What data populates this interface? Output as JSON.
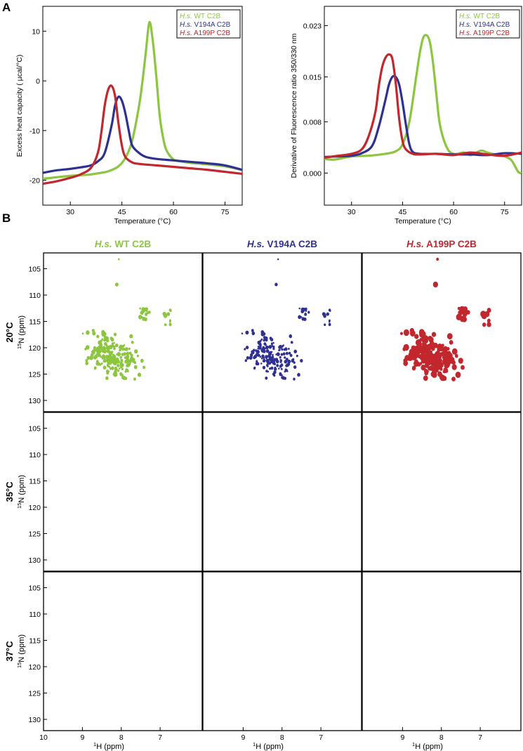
{
  "panel_labels": {
    "a": "A",
    "b": "B"
  },
  "colors": {
    "wt": "#8cc63f",
    "v194a": "#2e3192",
    "a199p": "#c1272d",
    "axis": "#000000"
  },
  "legend": [
    {
      "prefix": "H.s.",
      "rest": " WT C2B",
      "color": "#8cc63f"
    },
    {
      "prefix": "H.s.",
      "rest": " V194A C2B",
      "color": "#2e3192"
    },
    {
      "prefix": "H.s.",
      "rest": " A199P C2B",
      "color": "#c1272d"
    }
  ],
  "nmr": {
    "columns": [
      {
        "prefix": "H.s.",
        "rest": " WT C2B",
        "color": "#8cc63f"
      },
      {
        "prefix": "H.s.",
        "rest": " V194A C2B",
        "color": "#2e3192"
      },
      {
        "prefix": "H.s.",
        "rest": " A199P C2B",
        "color": "#c1272d"
      }
    ],
    "rows": [
      "20°C",
      "35°C",
      "37°C"
    ],
    "y_label": {
      "sup": "15",
      "main": "N  (ppm)"
    },
    "x_label": {
      "sup": "1",
      "main": "H  (ppm)"
    },
    "y_ticks": [
      "105",
      "110",
      "115",
      "120",
      "125",
      "130"
    ],
    "x_ticks_first": [
      "10",
      "9",
      "8",
      "7"
    ],
    "x_ticks_other": [
      "9",
      "8",
      "7"
    ]
  },
  "chart_data": [
    {
      "type": "line",
      "ylabel": "Excess heat capacity ( µcal/°C)",
      "xlabel": "Temperature (°C)",
      "xlim": [
        22,
        80
      ],
      "ylim": [
        -25,
        15
      ],
      "xticks": [
        30,
        45,
        60,
        75
      ],
      "yticks": [
        -20,
        -10,
        0,
        10
      ],
      "series": [
        {
          "name": "H.s. WT C2B",
          "x": [
            22,
            30,
            35,
            38,
            41,
            44,
            46,
            48,
            50,
            51,
            52,
            53,
            54,
            55,
            56,
            57,
            58,
            60,
            62,
            65,
            70,
            75,
            80
          ],
          "y": [
            -19.7,
            -19.1,
            -18.9,
            -18.6,
            -18.2,
            -17.2,
            -15.5,
            -12,
            -5,
            0,
            6,
            11.8,
            8,
            1,
            -7,
            -11.5,
            -14,
            -15.8,
            -16.2,
            -16.5,
            -16.8,
            -17.2,
            -17.9
          ]
        },
        {
          "name": "H.s. V194A C2B",
          "x": [
            22,
            26,
            30,
            33,
            36,
            38,
            40,
            42,
            43,
            44,
            45,
            46,
            47,
            48,
            50,
            52,
            55,
            60,
            65,
            70,
            75,
            80
          ],
          "y": [
            -18.5,
            -18,
            -17.7,
            -17.4,
            -17,
            -16.2,
            -14.5,
            -9,
            -5,
            -3.2,
            -4,
            -6.5,
            -10,
            -13,
            -14.5,
            -15.3,
            -15.7,
            -16,
            -16.3,
            -16.6,
            -17,
            -17.9
          ]
        },
        {
          "name": "H.s. A199P C2B",
          "x": [
            22,
            26,
            30,
            33,
            36,
            38,
            39,
            40,
            41,
            42,
            43,
            44,
            45,
            46,
            48,
            50,
            55,
            60,
            65,
            70,
            75,
            80
          ],
          "y": [
            -20.7,
            -20.2,
            -19.5,
            -18.8,
            -17.5,
            -14.5,
            -10.5,
            -5,
            -1.8,
            -1,
            -3,
            -8.5,
            -13,
            -15.3,
            -16.4,
            -16.7,
            -17,
            -17.3,
            -17.6,
            -17.9,
            -18.3,
            -18.7
          ]
        }
      ]
    },
    {
      "type": "line",
      "ylabel": "Derivative of Fluorescence ratio 350/330 nm",
      "xlabel": "Temperature (°C)",
      "xlim": [
        22,
        80
      ],
      "ylim": [
        -0.005,
        0.026
      ],
      "xticks": [
        30,
        45,
        60,
        75
      ],
      "yticks": [
        0.0,
        0.008,
        0.015,
        0.023
      ],
      "ytick_labels": [
        "0.000",
        "0.008",
        "0.015",
        "0.023"
      ],
      "series": [
        {
          "name": "H.s. WT C2B",
          "x": [
            22,
            25,
            30,
            35,
            40,
            43,
            45,
            47,
            49,
            50,
            51,
            52,
            53,
            54,
            55,
            56,
            58,
            60,
            63,
            65,
            68,
            70,
            73,
            75,
            77,
            79,
            80
          ],
          "y": [
            0.0022,
            0.0021,
            0.0026,
            0.0027,
            0.003,
            0.0034,
            0.0045,
            0.008,
            0.015,
            0.0185,
            0.021,
            0.0215,
            0.0205,
            0.017,
            0.012,
            0.0075,
            0.004,
            0.003,
            0.0032,
            0.0028,
            0.0035,
            0.0032,
            0.0028,
            0.0026,
            0.002,
            0.0002,
            0.0
          ]
        },
        {
          "name": "H.s. V194A C2B",
          "x": [
            22,
            26,
            30,
            33,
            36,
            38,
            40,
            41,
            42,
            43,
            44,
            45,
            46,
            47,
            48,
            50,
            55,
            60,
            65,
            70,
            75,
            80
          ],
          "y": [
            0.0025,
            0.0026,
            0.0027,
            0.0031,
            0.0042,
            0.0072,
            0.0115,
            0.0138,
            0.015,
            0.015,
            0.0138,
            0.011,
            0.0075,
            0.0045,
            0.0033,
            0.003,
            0.003,
            0.0029,
            0.0029,
            0.0028,
            0.0031,
            0.003
          ]
        },
        {
          "name": "H.s. A199P C2B",
          "x": [
            22,
            26,
            30,
            33,
            35,
            37,
            38,
            39,
            40,
            41,
            42,
            43,
            44,
            45,
            46,
            48,
            50,
            55,
            60,
            65,
            70,
            75,
            80
          ],
          "y": [
            0.0024,
            0.0027,
            0.003,
            0.0037,
            0.0057,
            0.0095,
            0.0135,
            0.0165,
            0.018,
            0.0185,
            0.0178,
            0.014,
            0.0085,
            0.005,
            0.0037,
            0.003,
            0.0029,
            0.003,
            0.0028,
            0.0032,
            0.0029,
            0.0027,
            0.0032
          ]
        }
      ]
    }
  ]
}
